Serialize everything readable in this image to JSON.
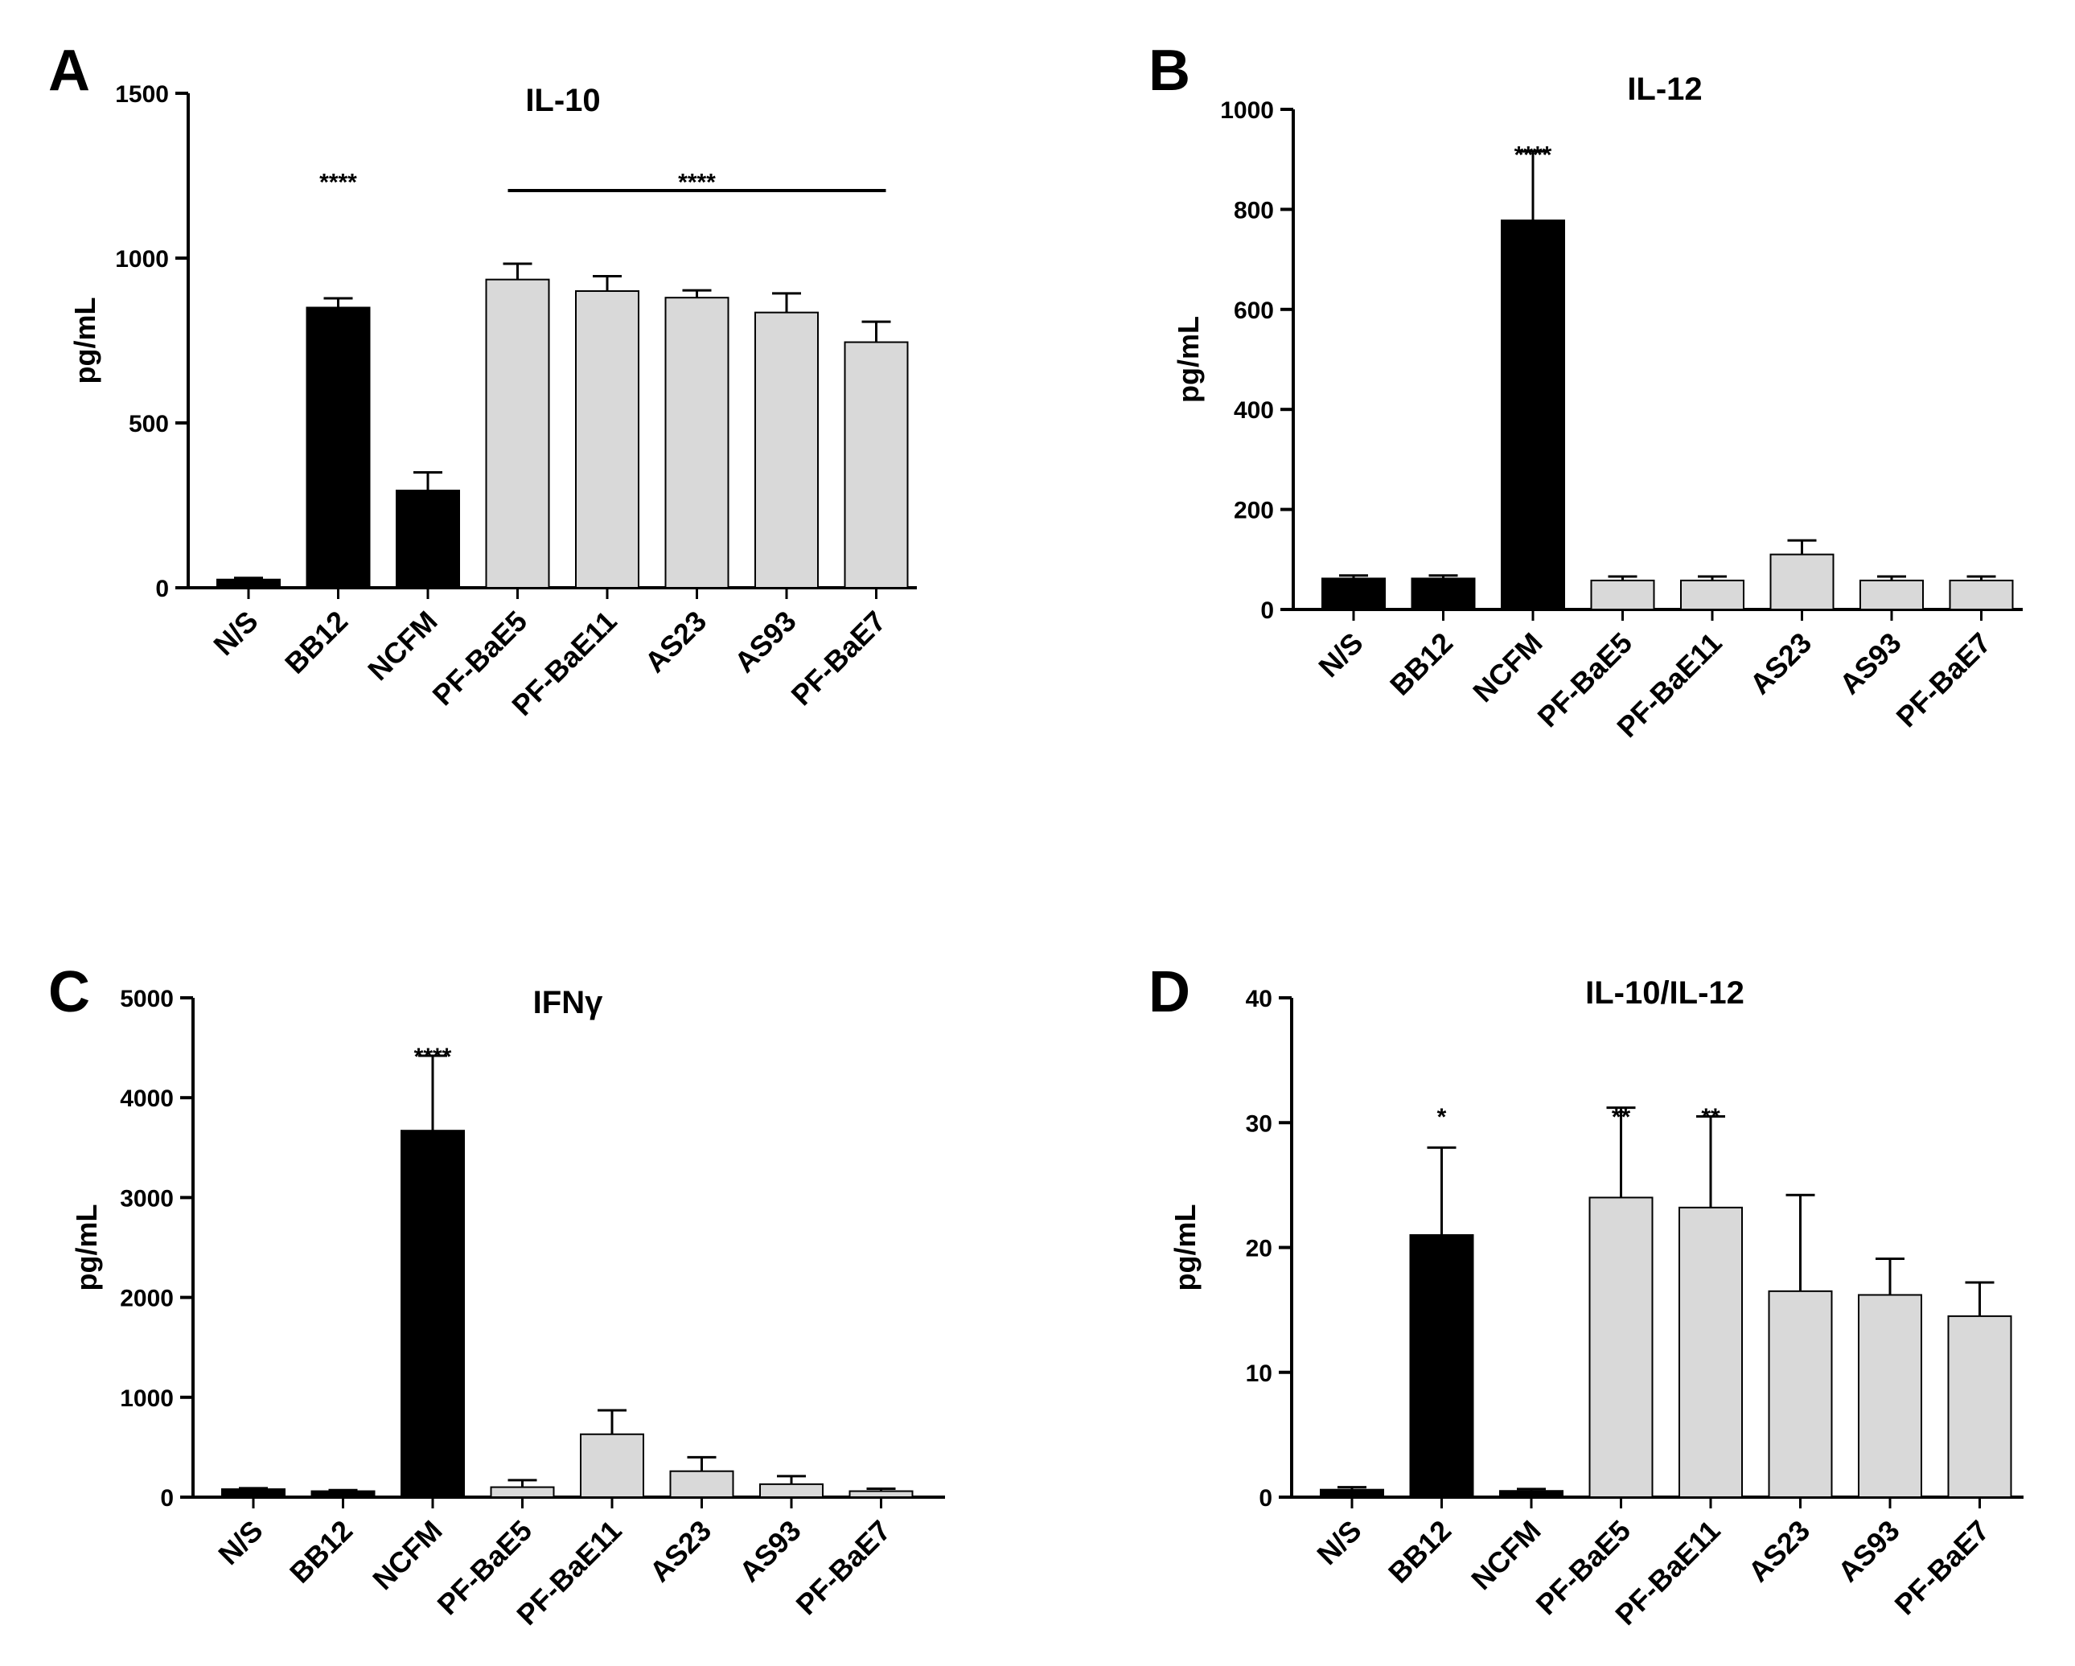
{
  "colors": {
    "black_bar": "#000000",
    "gray_bar": "#d9d9d9",
    "axis": "#000000"
  },
  "chart_data": [
    {
      "type": "bar",
      "panel": "A",
      "title": "IL-10",
      "xlabel": "",
      "ylabel": "pg/mL",
      "ylim": [
        0,
        1500
      ],
      "yticks": [
        0,
        500,
        1000,
        1500
      ],
      "categories": [
        "N/S",
        "BB12",
        "NCFM",
        "PF-BaE5",
        "PF-BaE11",
        "AS23",
        "AS93",
        "PF-BaE7"
      ],
      "values": [
        25,
        850,
        295,
        935,
        900,
        880,
        835,
        745
      ],
      "errors": [
        5,
        28,
        55,
        48,
        45,
        22,
        58,
        62
      ],
      "bar_colors": [
        "black",
        "black",
        "black",
        "gray",
        "gray",
        "gray",
        "gray",
        "gray"
      ],
      "significance": [
        {
          "label": "****",
          "category_index": 1,
          "y": 1270
        },
        {
          "label": "****",
          "from_index": 3,
          "to_index": 7,
          "y": 1270,
          "line_y": 1205
        }
      ]
    },
    {
      "type": "bar",
      "panel": "B",
      "title": "IL-12",
      "xlabel": "",
      "ylabel": "pg/mL",
      "ylim": [
        0,
        1000
      ],
      "yticks": [
        0,
        200,
        400,
        600,
        800,
        1000
      ],
      "categories": [
        "N/S",
        "BB12",
        "NCFM",
        "PF-BaE5",
        "PF-BaE11",
        "AS23",
        "AS93",
        "PF-BaE7"
      ],
      "values": [
        62,
        62,
        778,
        58,
        58,
        110,
        58,
        58
      ],
      "errors": [
        6,
        6,
        138,
        8,
        8,
        28,
        8,
        8
      ],
      "bar_colors": [
        "black",
        "black",
        "black",
        "gray",
        "gray",
        "gray",
        "gray",
        "gray"
      ],
      "significance": [
        {
          "label": "****",
          "category_index": 2,
          "y": 935
        }
      ]
    },
    {
      "type": "bar",
      "panel": "C",
      "title": "IFNγ",
      "xlabel": "",
      "ylabel": "pg/mL",
      "ylim": [
        0,
        5000
      ],
      "yticks": [
        0,
        1000,
        2000,
        3000,
        4000,
        5000
      ],
      "categories": [
        "N/S",
        "BB12",
        "NCFM",
        "PF-BaE5",
        "PF-BaE11",
        "AS23",
        "AS93",
        "PF-BaE7"
      ],
      "values": [
        80,
        60,
        3670,
        100,
        630,
        260,
        130,
        60
      ],
      "errors": [
        10,
        10,
        750,
        70,
        240,
        140,
        80,
        25
      ],
      "bar_colors": [
        "black",
        "black",
        "black",
        "gray",
        "gray",
        "gray",
        "gray",
        "gray"
      ],
      "significance": [
        {
          "label": "****",
          "category_index": 2,
          "y": 4540
        }
      ]
    },
    {
      "type": "bar",
      "panel": "D",
      "title": "IL-10/IL-12",
      "xlabel": "",
      "ylabel": "pg/mL",
      "ylim": [
        0,
        40
      ],
      "yticks": [
        0,
        10,
        20,
        30,
        40
      ],
      "categories": [
        "N/S",
        "BB12",
        "NCFM",
        "PF-BaE5",
        "PF-BaE11",
        "AS23",
        "AS93",
        "PF-BaE7"
      ],
      "values": [
        0.6,
        21,
        0.5,
        24,
        23.2,
        16.5,
        16.2,
        14.5
      ],
      "errors": [
        0.2,
        7,
        0.15,
        7.2,
        7.3,
        7.7,
        2.9,
        2.7
      ],
      "bar_colors": [
        "black",
        "black",
        "black",
        "gray",
        "gray",
        "gray",
        "gray",
        "gray"
      ],
      "significance": [
        {
          "label": "*",
          "category_index": 1,
          "y": 31.5
        },
        {
          "label": "**",
          "category_index": 3,
          "y": 31.5
        },
        {
          "label": "**",
          "category_index": 4,
          "y": 31.5
        }
      ]
    }
  ]
}
